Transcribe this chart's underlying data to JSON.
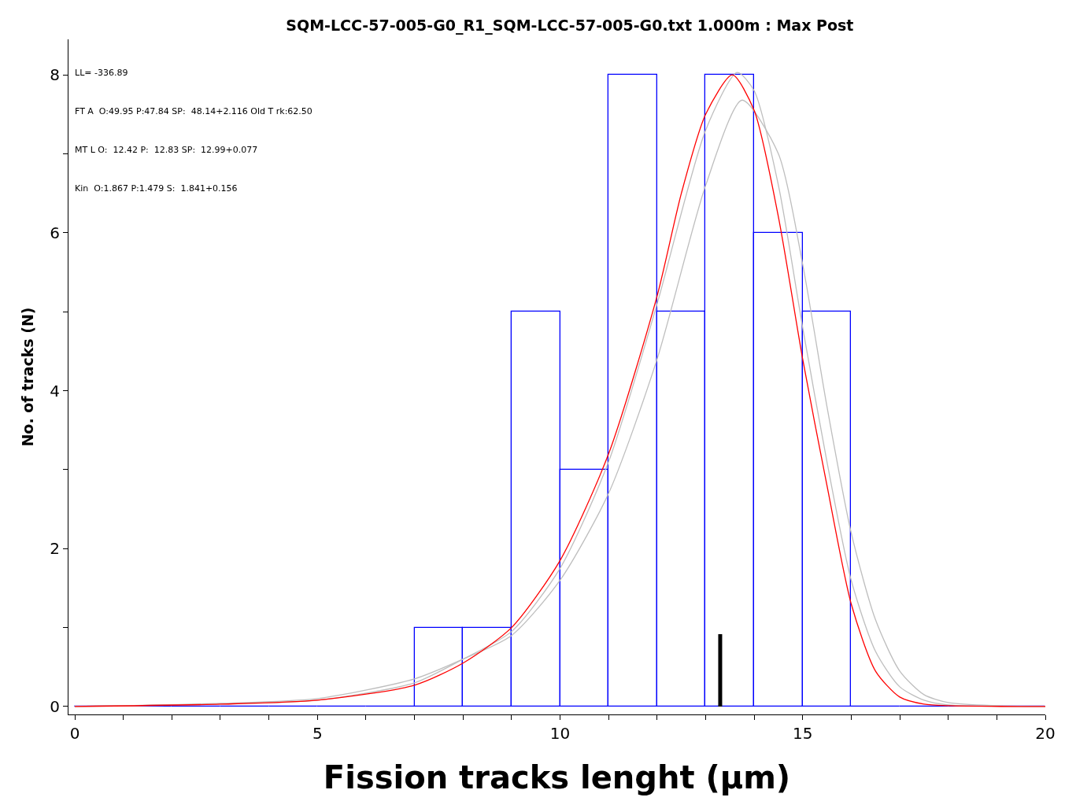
{
  "chart_data": {
    "type": "histogram",
    "title": "SQM-LCC-57-005-G0_R1_SQM-LCC-57-005-G0.txt 1.000m : Max Post",
    "xlabel": "Fission tracks lenght (µm)",
    "ylabel": "No. of tracks (N)",
    "bins": [
      0,
      1,
      2,
      3,
      4,
      5,
      6,
      7,
      8,
      9,
      10,
      11,
      12,
      13,
      14,
      15,
      16,
      17,
      18,
      19,
      20
    ],
    "values": [
      0,
      0,
      0,
      0,
      0,
      0,
      0,
      1,
      1,
      5,
      3,
      8,
      5,
      8,
      6,
      5,
      0,
      0,
      0,
      0
    ],
    "color": "#0000ff",
    "series": [
      {
        "type": "line",
        "color": "#bebebe",
        "x": [
          0,
          3,
          5,
          7,
          8,
          9,
          10,
          11,
          12,
          13,
          13.75,
          14.5,
          15,
          15.5,
          16,
          16.5,
          17,
          17.5,
          18,
          19,
          20
        ],
        "values": [
          0,
          0.04,
          0.1,
          0.35,
          0.6,
          0.9,
          1.6,
          2.7,
          4.4,
          6.6,
          7.68,
          7.0,
          5.6,
          3.8,
          2.2,
          1.1,
          0.45,
          0.15,
          0.05,
          0.01,
          0
        ]
      },
      {
        "type": "line",
        "color": "#bebebe",
        "x": [
          0,
          3,
          5,
          7,
          8,
          9,
          10,
          11,
          12,
          13,
          13.65,
          14,
          14.5,
          15,
          15.5,
          16,
          16.5,
          17,
          17.5,
          18,
          20
        ],
        "values": [
          0,
          0.03,
          0.08,
          0.3,
          0.6,
          0.95,
          1.75,
          3.1,
          5.1,
          7.3,
          8.03,
          7.8,
          6.6,
          4.8,
          3.1,
          1.6,
          0.7,
          0.25,
          0.08,
          0.02,
          0
        ]
      },
      {
        "type": "line",
        "color": "#ff0000",
        "x": [
          0,
          3,
          5,
          7,
          8,
          9,
          10,
          11,
          12,
          12.5,
          13,
          13.55,
          14,
          14.5,
          15,
          15.5,
          16,
          16.5,
          17,
          17.5,
          18,
          20
        ],
        "values": [
          0,
          0.03,
          0.08,
          0.27,
          0.55,
          1.0,
          1.85,
          3.2,
          5.2,
          6.5,
          7.5,
          8.0,
          7.55,
          6.2,
          4.4,
          2.8,
          1.3,
          0.45,
          0.12,
          0.03,
          0.01,
          0
        ]
      }
    ],
    "annotations": [
      "LL= -336.89",
      "FT A  O:49.95 P:47.84 SP:  48.14+2.116 Old T rk:62.50",
      "MT L O:  12.42 P:  12.83 SP:  12.99+0.077",
      "Kin  O:1.867 P:1.479 S:  1.841+0.156"
    ],
    "ref_lines": [
      {
        "axis": "x",
        "value": 13.3,
        "color": "#000000"
      }
    ],
    "xlim": [
      -0.13,
      20
    ],
    "ylim": [
      -0.1,
      8.45
    ],
    "xticks": [
      0,
      {
        "value": 1,
        "label": null
      },
      {
        "value": 2,
        "label": null
      },
      {
        "value": 3,
        "label": null
      },
      {
        "value": 4,
        "label": null
      },
      5,
      {
        "value": 6,
        "label": null
      },
      {
        "value": 7,
        "label": null
      },
      {
        "value": 8,
        "label": null
      },
      {
        "value": 9,
        "label": null
      },
      10,
      {
        "value": 11,
        "label": null
      },
      {
        "value": 12,
        "label": null
      },
      {
        "value": 13,
        "label": null
      },
      {
        "value": 14,
        "label": null
      },
      15,
      {
        "value": 16,
        "label": null
      },
      {
        "value": 17,
        "label": null
      },
      {
        "value": 18,
        "label": null
      },
      {
        "value": 19,
        "label": null
      },
      20
    ],
    "yticks": [
      0,
      {
        "value": 1,
        "label": null
      },
      2,
      {
        "value": 3,
        "label": null
      },
      4,
      {
        "value": 5,
        "label": null
      },
      6,
      {
        "value": 7,
        "label": null
      },
      8
    ]
  }
}
